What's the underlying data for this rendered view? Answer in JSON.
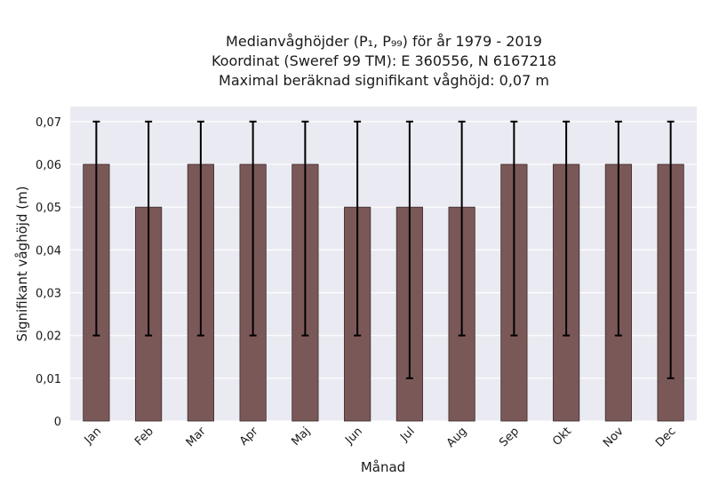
{
  "chart_data": {
    "type": "bar",
    "title_lines": [
      "Medianvåghöjder (P₁, P₉₉) för år 1979 - 2019",
      "Koordinat (Sweref 99 TM): E 360556, N 6167218",
      "Maximal beräknad signifikant våghöjd: 0,07 m"
    ],
    "xlabel": "Månad",
    "ylabel": "Signifikant våghöjd (m)",
    "categories": [
      "Jan",
      "Feb",
      "Mar",
      "Apr",
      "Maj",
      "Jun",
      "Jul",
      "Aug",
      "Sep",
      "Okt",
      "Nov",
      "Dec"
    ],
    "values": [
      0.06,
      0.05,
      0.06,
      0.06,
      0.06,
      0.05,
      0.05,
      0.05,
      0.06,
      0.06,
      0.06,
      0.06
    ],
    "error_low": [
      0.02,
      0.02,
      0.02,
      0.02,
      0.02,
      0.02,
      0.01,
      0.02,
      0.02,
      0.02,
      0.02,
      0.01
    ],
    "error_high": [
      0.07,
      0.07,
      0.07,
      0.07,
      0.07,
      0.07,
      0.07,
      0.07,
      0.07,
      0.07,
      0.07,
      0.07
    ],
    "ylim": [
      0,
      0.0735
    ],
    "yticks": [
      0,
      0.01,
      0.02,
      0.03,
      0.04,
      0.05,
      0.06,
      0.07
    ],
    "ytick_labels": [
      "0",
      "0,01",
      "0,02",
      "0,03",
      "0,04",
      "0,05",
      "0,06",
      "0,07"
    ],
    "grid": true,
    "colors": {
      "bar": "#7b5858",
      "bar_edge": "#3a2a2a",
      "error_bar": "#000000",
      "plot_background": "#eaeaf2",
      "grid": "#ffffff"
    }
  }
}
